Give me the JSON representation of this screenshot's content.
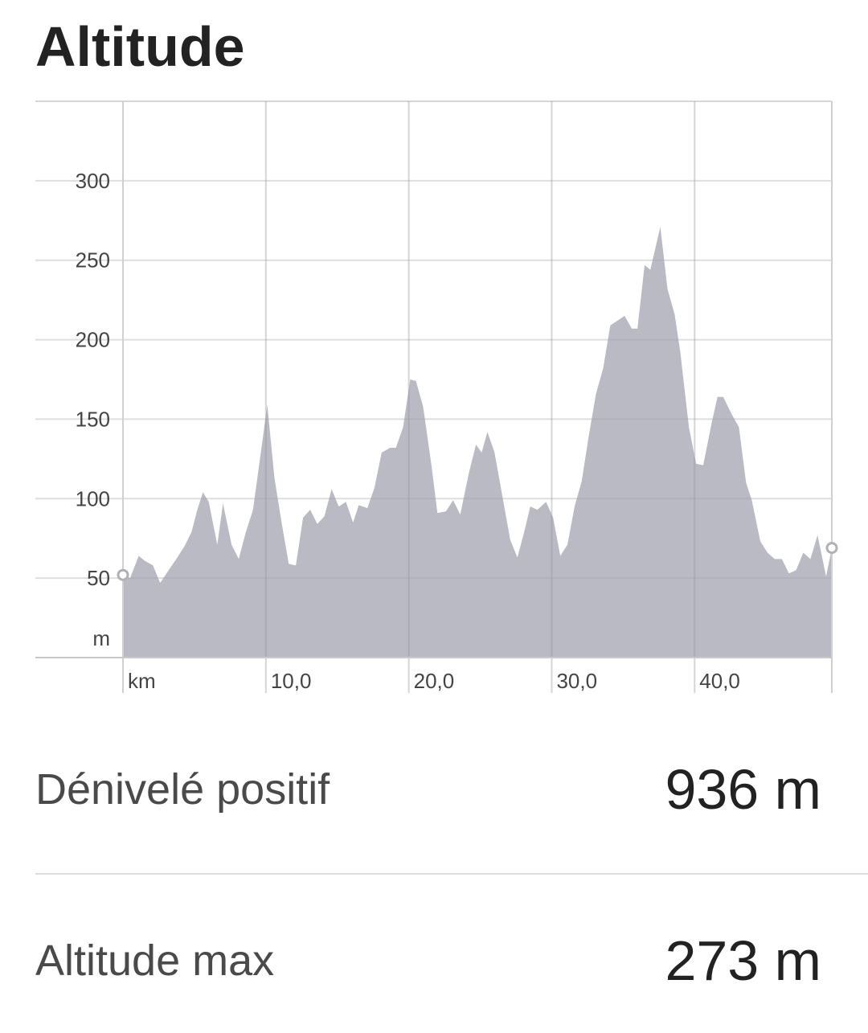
{
  "title": "Altitude",
  "chart_data": {
    "type": "area",
    "x_label": "km",
    "y_label": "m",
    "color": "#b9bac4",
    "xlim": [
      0,
      49.6
    ],
    "ylim": [
      0,
      350
    ],
    "xticks": [
      {
        "value": 10,
        "label": "10,0"
      },
      {
        "value": 20,
        "label": "20,0"
      },
      {
        "value": 30,
        "label": "30,0"
      },
      {
        "value": 40,
        "label": "40,0"
      }
    ],
    "yticks": [
      50,
      100,
      150,
      200,
      250,
      300
    ],
    "grid": true,
    "x": [
      0,
      0.5,
      1.1,
      1.5,
      2.1,
      2.6,
      3.2,
      3.8,
      4.3,
      4.8,
      5.2,
      5.6,
      6.0,
      6.6,
      7.0,
      7.6,
      8.1,
      8.6,
      9.1,
      9.6,
      10.1,
      10.6,
      11.1,
      11.6,
      12.1,
      12.6,
      13.1,
      13.6,
      14.1,
      14.6,
      15.1,
      15.6,
      16.1,
      16.5,
      17.1,
      17.6,
      18.1,
      18.7,
      19.1,
      19.6,
      20.1,
      20.5,
      21.0,
      21.6,
      22.0,
      22.6,
      23.1,
      23.6,
      24.2,
      24.7,
      25.1,
      25.5,
      26.0,
      26.6,
      27.1,
      27.6,
      28.1,
      28.5,
      29.0,
      29.6,
      30.1,
      30.6,
      31.1,
      31.6,
      32.1,
      32.6,
      33.1,
      33.6,
      34.1,
      34.6,
      35.1,
      35.6,
      36.0,
      36.5,
      36.9,
      37.6,
      38.1,
      38.6,
      39.0,
      39.6,
      40.1,
      40.6,
      41.2,
      41.6,
      42.0,
      42.6,
      43.1,
      43.6,
      44.0,
      44.6,
      45.1,
      45.6,
      46.1,
      46.6,
      47.1,
      47.6,
      48.1,
      48.6,
      49.2,
      49.6
    ],
    "values": [
      52,
      50,
      64,
      61,
      58,
      47,
      55,
      63,
      70,
      79,
      93,
      104,
      98,
      71,
      97,
      71,
      62,
      79,
      93,
      126,
      159,
      113,
      85,
      59,
      58,
      88,
      93,
      84,
      89,
      106,
      95,
      98,
      85,
      96,
      94,
      107,
      129,
      132,
      132,
      145,
      175,
      174,
      158,
      120,
      91,
      92,
      99,
      90,
      116,
      134,
      129,
      142,
      129,
      99,
      74,
      63,
      80,
      95,
      93,
      98,
      88,
      64,
      71,
      95,
      111,
      140,
      166,
      182,
      209,
      212,
      215,
      207,
      207,
      247,
      244,
      271,
      232,
      216,
      192,
      145,
      122,
      121,
      148,
      164,
      164,
      153,
      145,
      110,
      99,
      73,
      66,
      62,
      62,
      53,
      55,
      66,
      62,
      77,
      51,
      69
    ]
  },
  "stats": [
    {
      "label": "Dénivelé positif",
      "value": "936 m"
    },
    {
      "label": "Altitude max",
      "value": "273 m"
    }
  ]
}
